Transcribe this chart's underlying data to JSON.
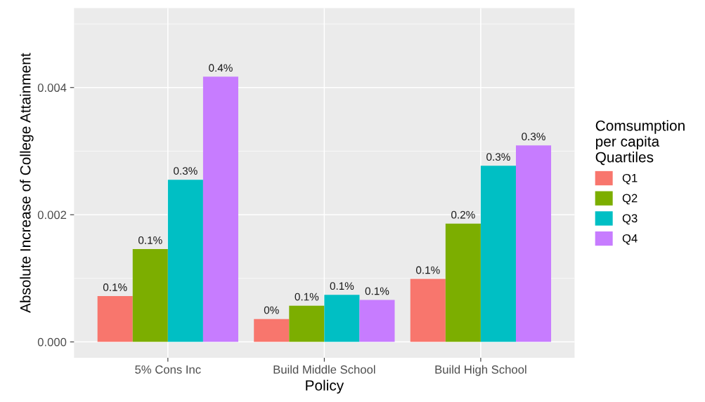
{
  "chart_data": {
    "type": "bar",
    "xlabel": "Policy",
    "ylabel": "Absolute Increase of College Attainment",
    "legend_title": "Comsumption\nper capita\nQuartiles",
    "legend": "right",
    "grid": true,
    "categories": [
      "5% Cons Inc",
      "Build Middle School",
      "Build High School"
    ],
    "ylim": [
      -0.00025,
      0.00525
    ],
    "yticks": [
      {
        "value": 0,
        "label": "0.000"
      },
      {
        "value": 0.002,
        "label": "0.002"
      },
      {
        "value": 0.004,
        "label": "0.004"
      }
    ],
    "series": [
      {
        "name": "Q1",
        "color": "#f8766d",
        "values": [
          0.00072,
          0.00036,
          0.00099
        ],
        "value_labels": [
          "0.1%",
          "0%",
          "0.1%"
        ]
      },
      {
        "name": "Q2",
        "color": "#7cae00",
        "values": [
          0.00146,
          0.00057,
          0.00186
        ],
        "value_labels": [
          "0.1%",
          "0.1%",
          "0.2%"
        ]
      },
      {
        "name": "Q3",
        "color": "#00bfc4",
        "values": [
          0.00255,
          0.00074,
          0.00277
        ],
        "value_labels": [
          "0.3%",
          "0.1%",
          "0.3%"
        ]
      },
      {
        "name": "Q4",
        "color": "#c77cff",
        "values": [
          0.00417,
          0.00066,
          0.00309
        ],
        "value_labels": [
          "0.4%",
          "0.1%",
          "0.3%"
        ]
      }
    ]
  }
}
